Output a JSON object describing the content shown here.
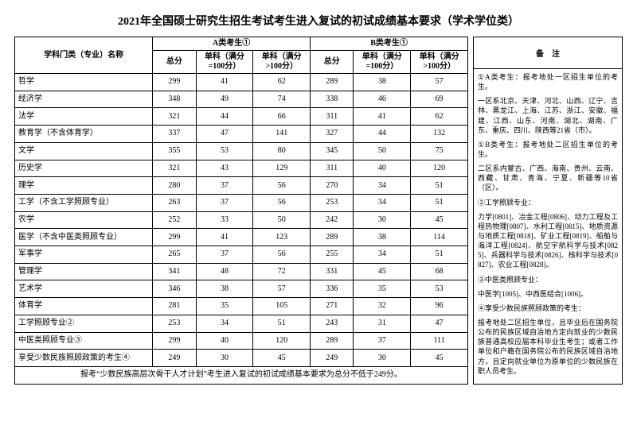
{
  "title": "2021年全国硕士研究生招生考试考生进入复试的初试成绩基本要求（学术学位类）",
  "headers": {
    "subject": "学科门类（专业）名称",
    "groupA": "A类考生①",
    "groupB": "B类考生①",
    "remarks": "备　注",
    "total": "总分",
    "single100": "单科（满分=100分）",
    "singleOver100": "单科（满分>100分）"
  },
  "rows": [
    {
      "subject": "哲学",
      "a_total": 299,
      "a_s100": 41,
      "a_sg100": 62,
      "b_total": 289,
      "b_s100": 38,
      "b_sg100": 57
    },
    {
      "subject": "经济学",
      "a_total": 348,
      "a_s100": 49,
      "a_sg100": 74,
      "b_total": 338,
      "b_s100": 46,
      "b_sg100": 69
    },
    {
      "subject": "法学",
      "a_total": 321,
      "a_s100": 44,
      "a_sg100": 66,
      "b_total": 311,
      "b_s100": 41,
      "b_sg100": 62
    },
    {
      "subject": "教育学（不含体育学）",
      "a_total": 337,
      "a_s100": 47,
      "a_sg100": 141,
      "b_total": 327,
      "b_s100": 44,
      "b_sg100": 132
    },
    {
      "subject": "文学",
      "a_total": 355,
      "a_s100": 53,
      "a_sg100": 80,
      "b_total": 345,
      "b_s100": 50,
      "b_sg100": 75
    },
    {
      "subject": "历史学",
      "a_total": 321,
      "a_s100": 43,
      "a_sg100": 129,
      "b_total": 311,
      "b_s100": 40,
      "b_sg100": 120
    },
    {
      "subject": "理学",
      "a_total": 280,
      "a_s100": 37,
      "a_sg100": 56,
      "b_total": 270,
      "b_s100": 34,
      "b_sg100": 51
    },
    {
      "subject": "工学（不含工学照顾专业）",
      "a_total": 263,
      "a_s100": 37,
      "a_sg100": 56,
      "b_total": 253,
      "b_s100": 34,
      "b_sg100": 51
    },
    {
      "subject": "农学",
      "a_total": 252,
      "a_s100": 33,
      "a_sg100": 50,
      "b_total": 242,
      "b_s100": 30,
      "b_sg100": 45
    },
    {
      "subject": "医学（不含中医类照顾专业）",
      "a_total": 299,
      "a_s100": 41,
      "a_sg100": 123,
      "b_total": 289,
      "b_s100": 38,
      "b_sg100": 114
    },
    {
      "subject": "军事学",
      "a_total": 265,
      "a_s100": 37,
      "a_sg100": 56,
      "b_total": 255,
      "b_s100": 34,
      "b_sg100": 51
    },
    {
      "subject": "管理学",
      "a_total": 341,
      "a_s100": 48,
      "a_sg100": 72,
      "b_total": 331,
      "b_s100": 45,
      "b_sg100": 68
    },
    {
      "subject": "艺术学",
      "a_total": 346,
      "a_s100": 38,
      "a_sg100": 57,
      "b_total": 336,
      "b_s100": 35,
      "b_sg100": 53
    },
    {
      "subject": "体育学",
      "a_total": 281,
      "a_s100": 35,
      "a_sg100": 105,
      "b_total": 271,
      "b_s100": 32,
      "b_sg100": 96
    },
    {
      "subject": "工学照顾专业②",
      "a_total": 253,
      "a_s100": 34,
      "a_sg100": 51,
      "b_total": 243,
      "b_s100": 31,
      "b_sg100": 47
    },
    {
      "subject": "中医类照顾专业③",
      "a_total": 299,
      "a_s100": 40,
      "a_sg100": 120,
      "b_total": 289,
      "b_s100": 37,
      "b_sg100": 111
    },
    {
      "subject": "享受少数民族照顾政策的考生④",
      "a_total": 249,
      "a_s100": 30,
      "a_sg100": 45,
      "b_total": 249,
      "b_s100": 30,
      "b_sg100": 45
    }
  ],
  "footnote": "报考“少数民族高层次骨干人才计划”考生进入复试的初试成绩基本要求为总分不低于249分。",
  "remarks": {
    "n1a": "①A类考生：报考地处一区招生单位的考生。",
    "n1a2": "一区系北京、天津、河北、山西、辽宁、吉林、黑龙江、上海、江苏、浙江、安徽、福建、江西、山东、河南、湖北、湖南、广东、重庆、四川、陕西等21省（市）。",
    "n1b": "①B类考生：报考地处二区招生单位的考生。",
    "n1b2": "二区系内蒙古、广西、海南、贵州、云南、西藏、甘肃、青海、宁夏、新疆等10省（区）。",
    "n2": "②工学照顾专业：",
    "n2b": "力学[0801]、冶金工程[0806]、动力工程及工程热物理[0807]、水利工程[0815]、地质资源与地质工程[0818]、矿业工程[0819]、船舶与海洋工程[0824]、航空宇航科学与技术[0825]、兵器科学与技术[0826]、核科学与技术[0827]、农业工程[0828]。",
    "n3": "③中医类照顾专业：",
    "n3b": "中医学[1005]、中西医结合[1006]。",
    "n4": "④享受少数民族照顾政策的考生：",
    "n4b": "报考地处二区招生单位，且毕业后在国务院公布的民族区域自治地方定向就业的少数民族普通高校应届本科毕业生考生；或者工作单位和户籍在国务院公布的民族区域自治地方，且定向就业单位为原单位的少数民族在职人员考生。"
  }
}
